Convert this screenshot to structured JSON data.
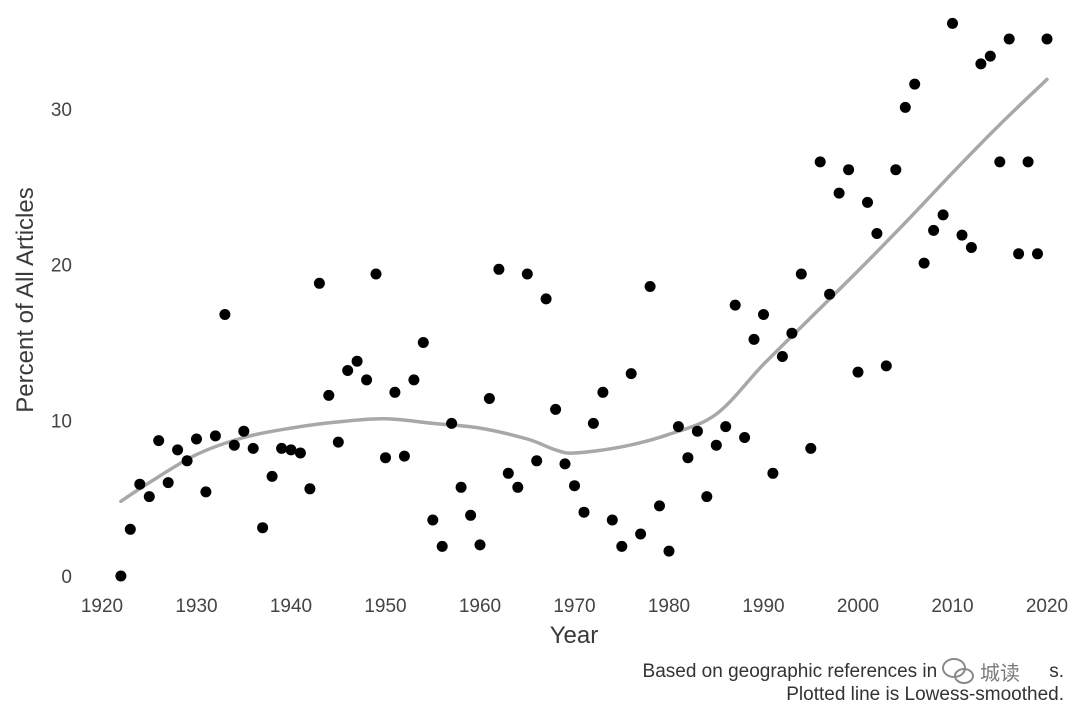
{
  "chart_data": {
    "type": "scatter",
    "xlabel": "Year",
    "ylabel": "Percent of All Articles",
    "xlim": [
      1920,
      2020
    ],
    "ylim": [
      0,
      35
    ],
    "x_ticks": [
      "1920",
      "1930",
      "1940",
      "1950",
      "1960",
      "1970",
      "1980",
      "1990",
      "2000",
      "2010",
      "2020"
    ],
    "y_ticks": [
      "0",
      "10",
      "20",
      "30"
    ],
    "grid": false,
    "point_color": "#000000",
    "line_color": "#a8a8a8",
    "points": [
      [
        1922,
        0.0
      ],
      [
        1923,
        3.0
      ],
      [
        1924,
        5.9
      ],
      [
        1925,
        5.1
      ],
      [
        1926,
        8.7
      ],
      [
        1927,
        6.0
      ],
      [
        1928,
        8.1
      ],
      [
        1929,
        7.4
      ],
      [
        1930,
        8.8
      ],
      [
        1931,
        5.4
      ],
      [
        1932,
        9.0
      ],
      [
        1933,
        16.8
      ],
      [
        1934,
        8.4
      ],
      [
        1935,
        9.3
      ],
      [
        1936,
        8.2
      ],
      [
        1937,
        3.1
      ],
      [
        1938,
        6.4
      ],
      [
        1939,
        8.2
      ],
      [
        1940,
        8.1
      ],
      [
        1941,
        7.9
      ],
      [
        1942,
        5.6
      ],
      [
        1943,
        18.8
      ],
      [
        1944,
        11.6
      ],
      [
        1945,
        8.6
      ],
      [
        1946,
        13.2
      ],
      [
        1947,
        13.8
      ],
      [
        1948,
        12.6
      ],
      [
        1949,
        19.4
      ],
      [
        1950,
        7.6
      ],
      [
        1951,
        11.8
      ],
      [
        1952,
        7.7
      ],
      [
        1953,
        12.6
      ],
      [
        1954,
        15.0
      ],
      [
        1955,
        3.6
      ],
      [
        1956,
        1.9
      ],
      [
        1957,
        9.8
      ],
      [
        1958,
        5.7
      ],
      [
        1959,
        3.9
      ],
      [
        1960,
        2.0
      ],
      [
        1961,
        11.4
      ],
      [
        1962,
        19.7
      ],
      [
        1963,
        6.6
      ],
      [
        1964,
        5.7
      ],
      [
        1965,
        19.4
      ],
      [
        1966,
        7.4
      ],
      [
        1967,
        17.8
      ],
      [
        1968,
        10.7
      ],
      [
        1969,
        7.2
      ],
      [
        1970,
        5.8
      ],
      [
        1971,
        4.1
      ],
      [
        1972,
        9.8
      ],
      [
        1973,
        11.8
      ],
      [
        1974,
        3.6
      ],
      [
        1975,
        1.9
      ],
      [
        1976,
        13.0
      ],
      [
        1977,
        2.7
      ],
      [
        1978,
        18.6
      ],
      [
        1979,
        4.5
      ],
      [
        1980,
        1.6
      ],
      [
        1981,
        9.6
      ],
      [
        1982,
        7.6
      ],
      [
        1983,
        9.3
      ],
      [
        1984,
        5.1
      ],
      [
        1985,
        8.4
      ],
      [
        1986,
        9.6
      ],
      [
        1987,
        17.4
      ],
      [
        1988,
        8.9
      ],
      [
        1989,
        15.2
      ],
      [
        1990,
        16.8
      ],
      [
        1991,
        6.6
      ],
      [
        1992,
        14.1
      ],
      [
        1993,
        15.6
      ],
      [
        1994,
        19.4
      ],
      [
        1995,
        8.2
      ],
      [
        1996,
        26.6
      ],
      [
        1997,
        18.1
      ],
      [
        1998,
        24.6
      ],
      [
        1999,
        26.1
      ],
      [
        2000,
        13.1
      ],
      [
        2001,
        24.0
      ],
      [
        2002,
        22.0
      ],
      [
        2003,
        13.5
      ],
      [
        2004,
        26.1
      ],
      [
        2005,
        30.1
      ],
      [
        2006,
        31.6
      ],
      [
        2007,
        20.1
      ],
      [
        2008,
        22.2
      ],
      [
        2009,
        23.2
      ],
      [
        2010,
        35.5
      ],
      [
        2011,
        21.9
      ],
      [
        2012,
        21.1
      ],
      [
        2013,
        32.9
      ],
      [
        2014,
        33.4
      ],
      [
        2015,
        26.6
      ],
      [
        2016,
        34.5
      ],
      [
        2017,
        20.7
      ],
      [
        2018,
        26.6
      ],
      [
        2019,
        20.7
      ],
      [
        2020,
        34.5
      ]
    ],
    "smoothed_line": [
      [
        1922,
        4.8
      ],
      [
        1925,
        6.0
      ],
      [
        1930,
        7.8
      ],
      [
        1935,
        8.9
      ],
      [
        1940,
        9.5
      ],
      [
        1945,
        9.9
      ],
      [
        1950,
        10.1
      ],
      [
        1955,
        9.8
      ],
      [
        1960,
        9.5
      ],
      [
        1965,
        8.8
      ],
      [
        1968,
        8.1
      ],
      [
        1970,
        7.9
      ],
      [
        1975,
        8.3
      ],
      [
        1980,
        9.1
      ],
      [
        1985,
        10.4
      ],
      [
        1990,
        13.6
      ],
      [
        1995,
        16.6
      ],
      [
        2000,
        19.6
      ],
      [
        2005,
        22.7
      ],
      [
        2010,
        25.9
      ],
      [
        2015,
        29.0
      ],
      [
        2020,
        31.9
      ]
    ]
  },
  "caption": {
    "line1": "Based on geographic references in",
    "line1_tail": "s.",
    "line2": "Plotted line is Lowess-smoothed."
  },
  "watermark": {
    "icon": "wechat-icon",
    "text": "城读"
  }
}
